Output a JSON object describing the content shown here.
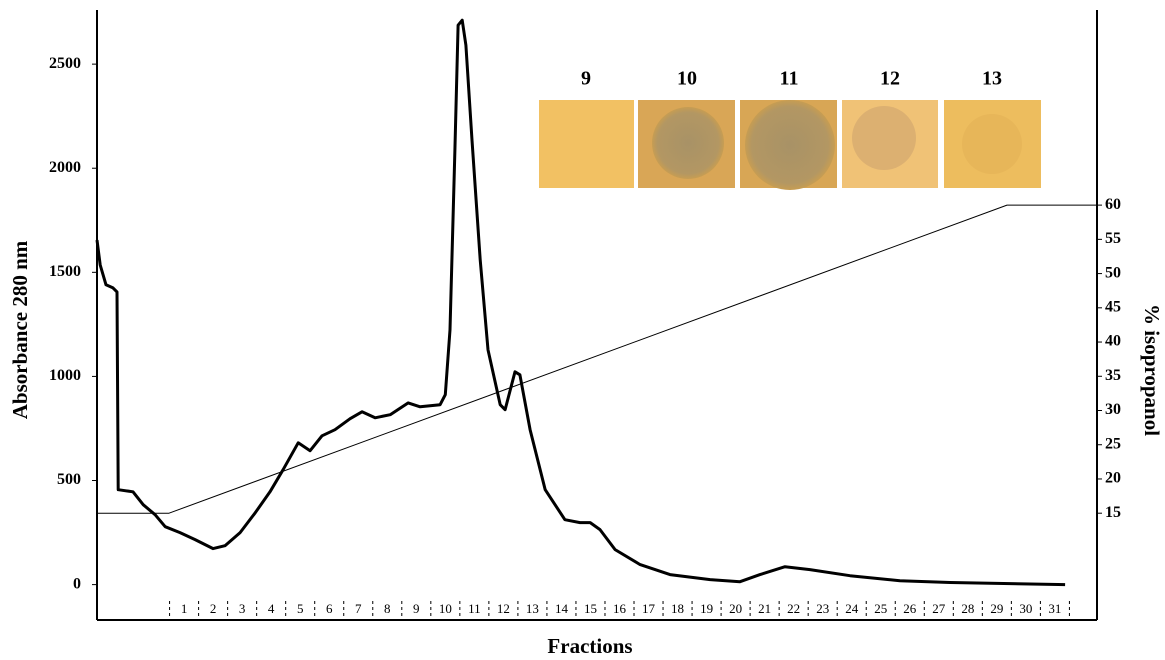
{
  "chart_data": {
    "type": "line",
    "xlabel": "Fractions",
    "ylabel": "Absorbance 280 nm",
    "y2label": "% isopropanol",
    "xlim": [
      -2,
      32.45
    ],
    "xticks": [
      1,
      2,
      3,
      4,
      5,
      6,
      7,
      8,
      9,
      10,
      11,
      12,
      13,
      14,
      15,
      16,
      17,
      18,
      19,
      20,
      21,
      22,
      23,
      24,
      25,
      26,
      27,
      28,
      29,
      30,
      31
    ],
    "ylim": [
      -170,
      2760
    ],
    "yticks": [
      0,
      500,
      1000,
      1500,
      2000,
      2500
    ],
    "y2lim": [
      -0.6,
      88.5
    ],
    "y2ticks": [
      15,
      20,
      25,
      30,
      35,
      40,
      45,
      50,
      55,
      60
    ],
    "plate_labels": [
      "9",
      "10",
      "11",
      "12",
      "13"
    ],
    "series": [
      {
        "color": "#000000",
        "width": 3,
        "x": [
          -2.0,
          -1.89,
          -1.69,
          -1.45,
          -1.31,
          -1.27,
          -0.76,
          -0.41,
          0.0,
          0.35,
          0.86,
          1.38,
          2.0,
          2.41,
          2.93,
          3.45,
          3.96,
          4.41,
          4.93,
          5.34,
          5.75,
          6.2,
          6.72,
          7.13,
          7.58,
          8.1,
          8.72,
          9.13,
          9.82,
          10.0,
          10.16,
          10.33,
          10.44,
          10.58,
          10.71,
          10.92,
          11.2,
          11.47,
          11.89,
          12.06,
          12.4,
          12.57,
          12.92,
          13.44,
          14.12,
          14.64,
          14.99,
          15.33,
          15.85,
          16.71,
          17.74,
          19.12,
          20.15,
          20.84,
          21.7,
          22.56,
          23.94,
          25.66,
          27.39,
          31.35
        ],
        "values": [
          1655,
          1535,
          1440,
          1425,
          1406,
          456,
          446,
          384,
          336,
          278,
          250,
          216,
          173,
          187,
          250,
          345,
          446,
          552,
          681,
          643,
          715,
          744,
          797,
          830,
          801,
          816,
          873,
          854,
          864,
          912,
          1224,
          2087,
          2687,
          2711,
          2591,
          2135,
          1560,
          1128,
          864,
          840,
          1022,
          1008,
          744,
          456,
          312,
          298,
          298,
          264,
          168,
          96,
          48,
          24,
          14,
          48,
          86,
          72,
          43,
          19,
          10,
          0
        ]
      },
      {
        "color": "#000000",
        "width": 1,
        "axis": "y2",
        "x": [
          -2.0,
          0.48,
          29.35,
          32.45
        ],
        "values": [
          15,
          15,
          60,
          60
        ]
      }
    ]
  }
}
